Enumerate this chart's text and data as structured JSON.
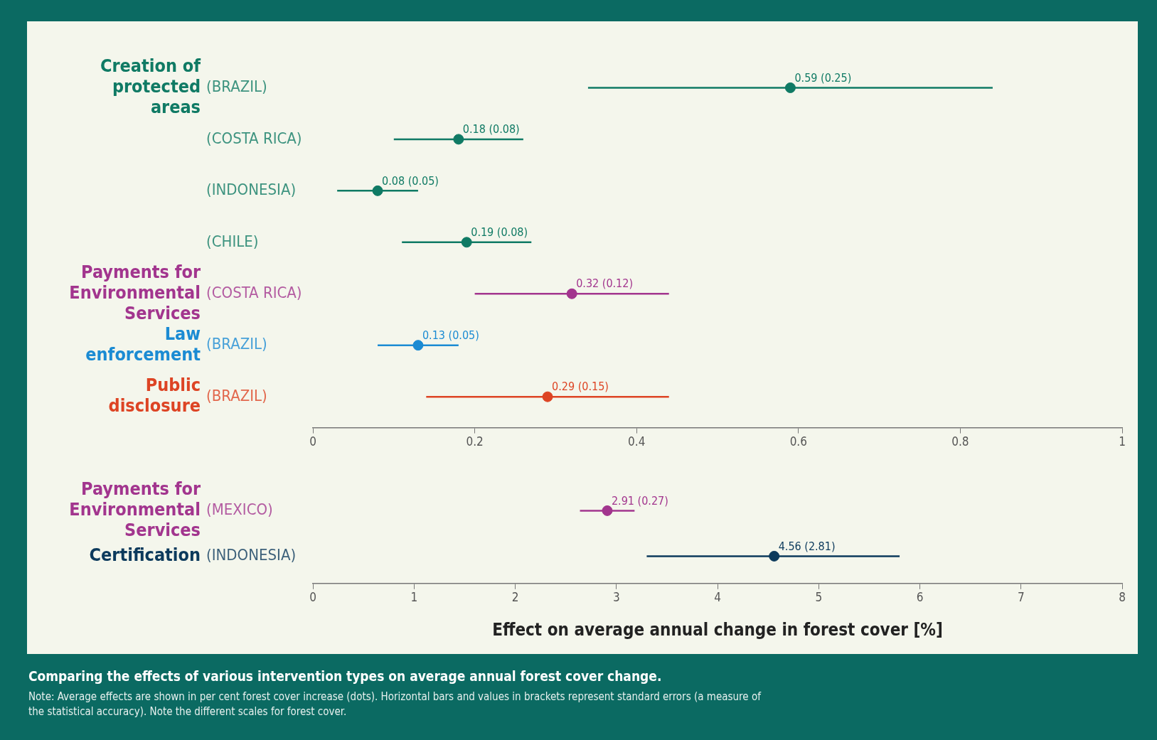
{
  "chart_data": [
    {
      "type": "scatter",
      "orientation": "horizontal",
      "marker": "circle",
      "legend": false,
      "grid": false,
      "categories": [
        "(BRAZIL)",
        "(COSTA RICA)",
        "(INDONESIA)",
        "(CHILE)",
        "(COSTA RICA)",
        "(BRAZIL)",
        "(BRAZIL)"
      ],
      "xlim": [
        0,
        1
      ],
      "xticks": [
        0,
        0.2,
        0.4,
        0.6,
        0.8,
        1
      ],
      "series": [
        {
          "name": "Creation of protected areas",
          "color": "#0f7a64",
          "values": [
            0.59,
            0.18,
            0.08,
            0.19,
            null,
            null,
            null
          ],
          "errors": [
            0.25,
            0.08,
            0.05,
            0.08,
            null,
            null,
            null
          ],
          "value_labels": [
            "0.59 (0.25)",
            "0.18 (0.08)",
            "0.08 (0.05)",
            "0.19 (0.08)",
            null,
            null,
            null
          ]
        },
        {
          "name": "Payments for Environmental Services",
          "color": "#a2358e",
          "values": [
            null,
            null,
            null,
            null,
            0.32,
            null,
            null
          ],
          "errors": [
            null,
            null,
            null,
            null,
            0.12,
            null,
            null
          ],
          "value_labels": [
            null,
            null,
            null,
            null,
            "0.32 (0.12)",
            null,
            null
          ]
        },
        {
          "name": "Law enforcement",
          "color": "#1b8bd3",
          "values": [
            null,
            null,
            null,
            null,
            null,
            0.13,
            null
          ],
          "errors": [
            null,
            null,
            null,
            null,
            null,
            0.05,
            null
          ],
          "value_labels": [
            null,
            null,
            null,
            null,
            null,
            "0.13 (0.05)",
            null
          ]
        },
        {
          "name": "Public disclosure",
          "color": "#dd4424",
          "values": [
            null,
            null,
            null,
            null,
            null,
            null,
            0.29
          ],
          "errors": [
            null,
            null,
            null,
            null,
            null,
            null,
            0.15
          ],
          "value_labels": [
            null,
            null,
            null,
            null,
            null,
            null,
            "0.29 (0.15)"
          ]
        }
      ]
    },
    {
      "type": "scatter",
      "orientation": "horizontal",
      "marker": "circle",
      "legend": false,
      "grid": false,
      "title": "Comparing the effects of various intervention types on average annual forest cover change.",
      "annotations": [
        "Note: Average effects are shown in per cent forest cover increase (dots). Horizontal bars and values in brackets represent standard errors (a measure of the statistical accuracy). Note the different scales for forest cover."
      ],
      "xlabel": "Effect on average annual change in forest cover [%]",
      "categories": [
        "(MEXICO)",
        "(INDONESIA)"
      ],
      "xlim": [
        0,
        8
      ],
      "xticks": [
        0,
        1,
        2,
        3,
        4,
        5,
        6,
        7,
        8
      ],
      "series": [
        {
          "name": "Payments for Environmental Services",
          "color": "#a2358e",
          "values": [
            2.91,
            null
          ],
          "errors": [
            0.27,
            null
          ],
          "value_labels": [
            "2.91 (0.27)",
            null
          ]
        },
        {
          "name": "Certification",
          "color": "#0c3a5c",
          "values": [
            null,
            4.56
          ],
          "errors": [
            null,
            [
              3.3,
              5.8
            ]
          ],
          "value_labels": [
            null,
            "4.56 (2.81)"
          ]
        }
      ]
    }
  ]
}
